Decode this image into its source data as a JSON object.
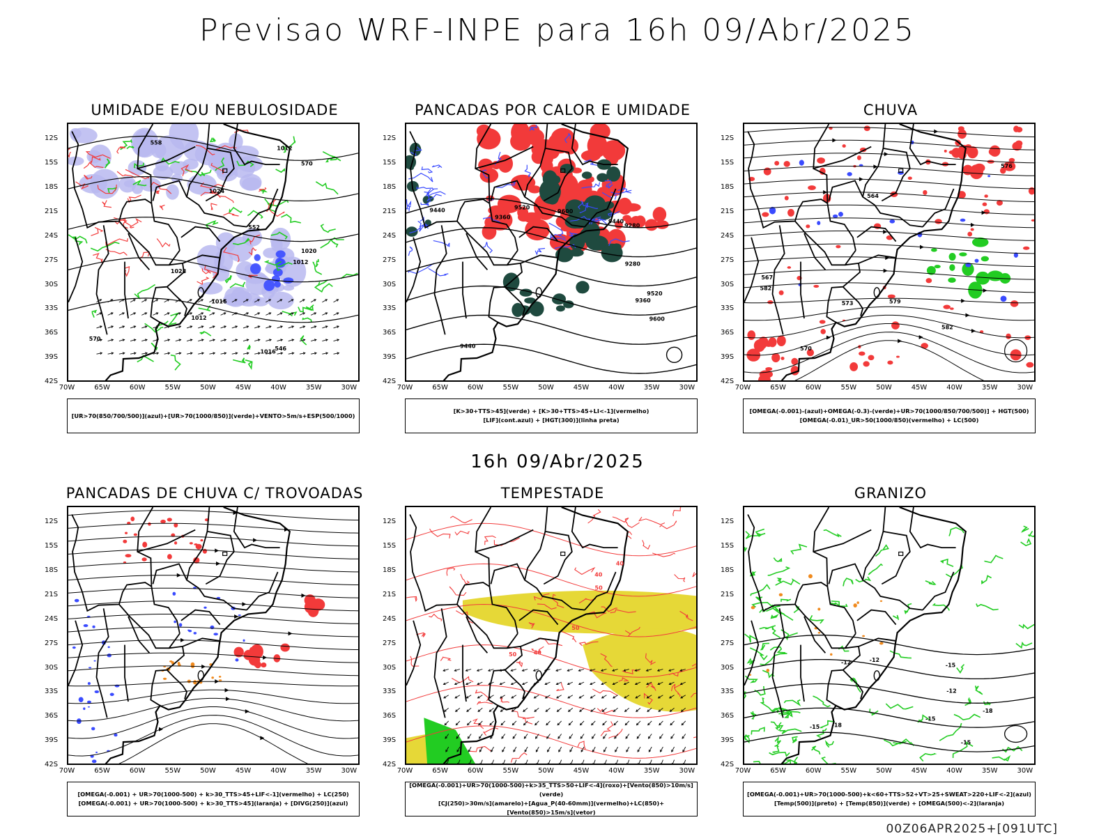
{
  "main_title": "Previsao WRF-INPE  para 16h 09/Abr/2025",
  "mid_title": "16h 09/Abr/2025",
  "footer": "00Z06APR2025+[091UTC]",
  "colors": {
    "blue": "#3a4bff",
    "green": "#22cc22",
    "red": "#f23a3a",
    "lavender": "#b8b8f0",
    "darkgreen": "#1f4a3f",
    "yellow": "#e6d837",
    "orange": "#f08a1e"
  },
  "axes": {
    "lat_labels": [
      "12S",
      "15S",
      "18S",
      "21S",
      "24S",
      "27S",
      "30S",
      "33S",
      "36S",
      "39S",
      "42S"
    ],
    "lon_labels": [
      "70W",
      "65W",
      "60W",
      "55W",
      "50W",
      "45W",
      "40W",
      "35W",
      "30W"
    ]
  },
  "panels": [
    {
      "title": "UMIDADE E/OU NEBULOSIDADE",
      "legend": [
        "[UR>70(850/700/500)](azul)+[UR>70(1000/850)](verde)+VENTO>5m/s+ESP(500/1000)"
      ],
      "contour_labels": [
        "1012",
        "1012",
        "1012",
        "1016",
        "1016",
        "1020",
        "1024",
        "1028",
        "570",
        "570",
        "558",
        "552",
        "546"
      ]
    },
    {
      "title": "PANCADAS POR CALOR E UMIDADE",
      "legend": [
        "[K>30+TTS>45](verde) + [K>30+TTS>45+LI<-1](vermelho)",
        "[LIF](cont.azul) + [HGT(300)](linha preta)"
      ],
      "contour_labels": [
        "9600",
        "9600",
        "9520",
        "9520",
        "9440",
        "9440",
        "9440",
        "9360",
        "9360",
        "9280",
        "9280"
      ]
    },
    {
      "title": "CHUVA",
      "legend": [
        "[OMEGA(-0.001)-(azul)+OMEGA(-0.3)-(verde)+UR>70(1000/850/700/500)] + HGT(500)",
        "[OMEGA(-0.01)_UR>50(1000/850)(vermelho) + LC(500)"
      ],
      "contour_labels": [
        "582",
        "582",
        "579",
        "576",
        "573",
        "570",
        "567",
        "564"
      ]
    },
    {
      "title": "PANCADAS DE CHUVA C/ TROVOADAS",
      "legend": [
        "[OMEGA(-0.001) + UR>70(1000-500) + k>30_TTS>45+LIF<-1](vermelho) + LC(250)",
        "[OMEGA(-0.001) + UR>70(1000-500) + k>30_TTS>45](laranja) + [DIVG(250)](azul)"
      ],
      "contour_labels": []
    },
    {
      "title": "TEMPESTADE",
      "legend": [
        "[OMEGA(-0.001)+UR>70(1000-500)+k>35_TTS>50+LIF<-4](roxo)+[Vento(850)>10m/s](verde)",
        "[CJ(250)>30m/s](amarelo)+[Agua_P(40-60mm)](vermelho)+LC(850)+[Vento(850)>15m/s](vetor)"
      ],
      "contour_labels": [
        "50",
        "50",
        "40",
        "40",
        "40",
        "50"
      ]
    },
    {
      "title": "GRANIZO",
      "legend": [
        "[OMEGA(-0.001)+UR>70(1000-500)+k<60+TTS>52+VT>25+SWEAT>220+LIF<-2](azul)",
        "[Temp(500)](preto) + [Temp(850)](verde) + [OMEGA(500)<-2](laranja)"
      ],
      "contour_labels": [
        "-12",
        "-12",
        "-15",
        "-15",
        "-15",
        "-18",
        "-18",
        "-15",
        "-12"
      ]
    }
  ]
}
